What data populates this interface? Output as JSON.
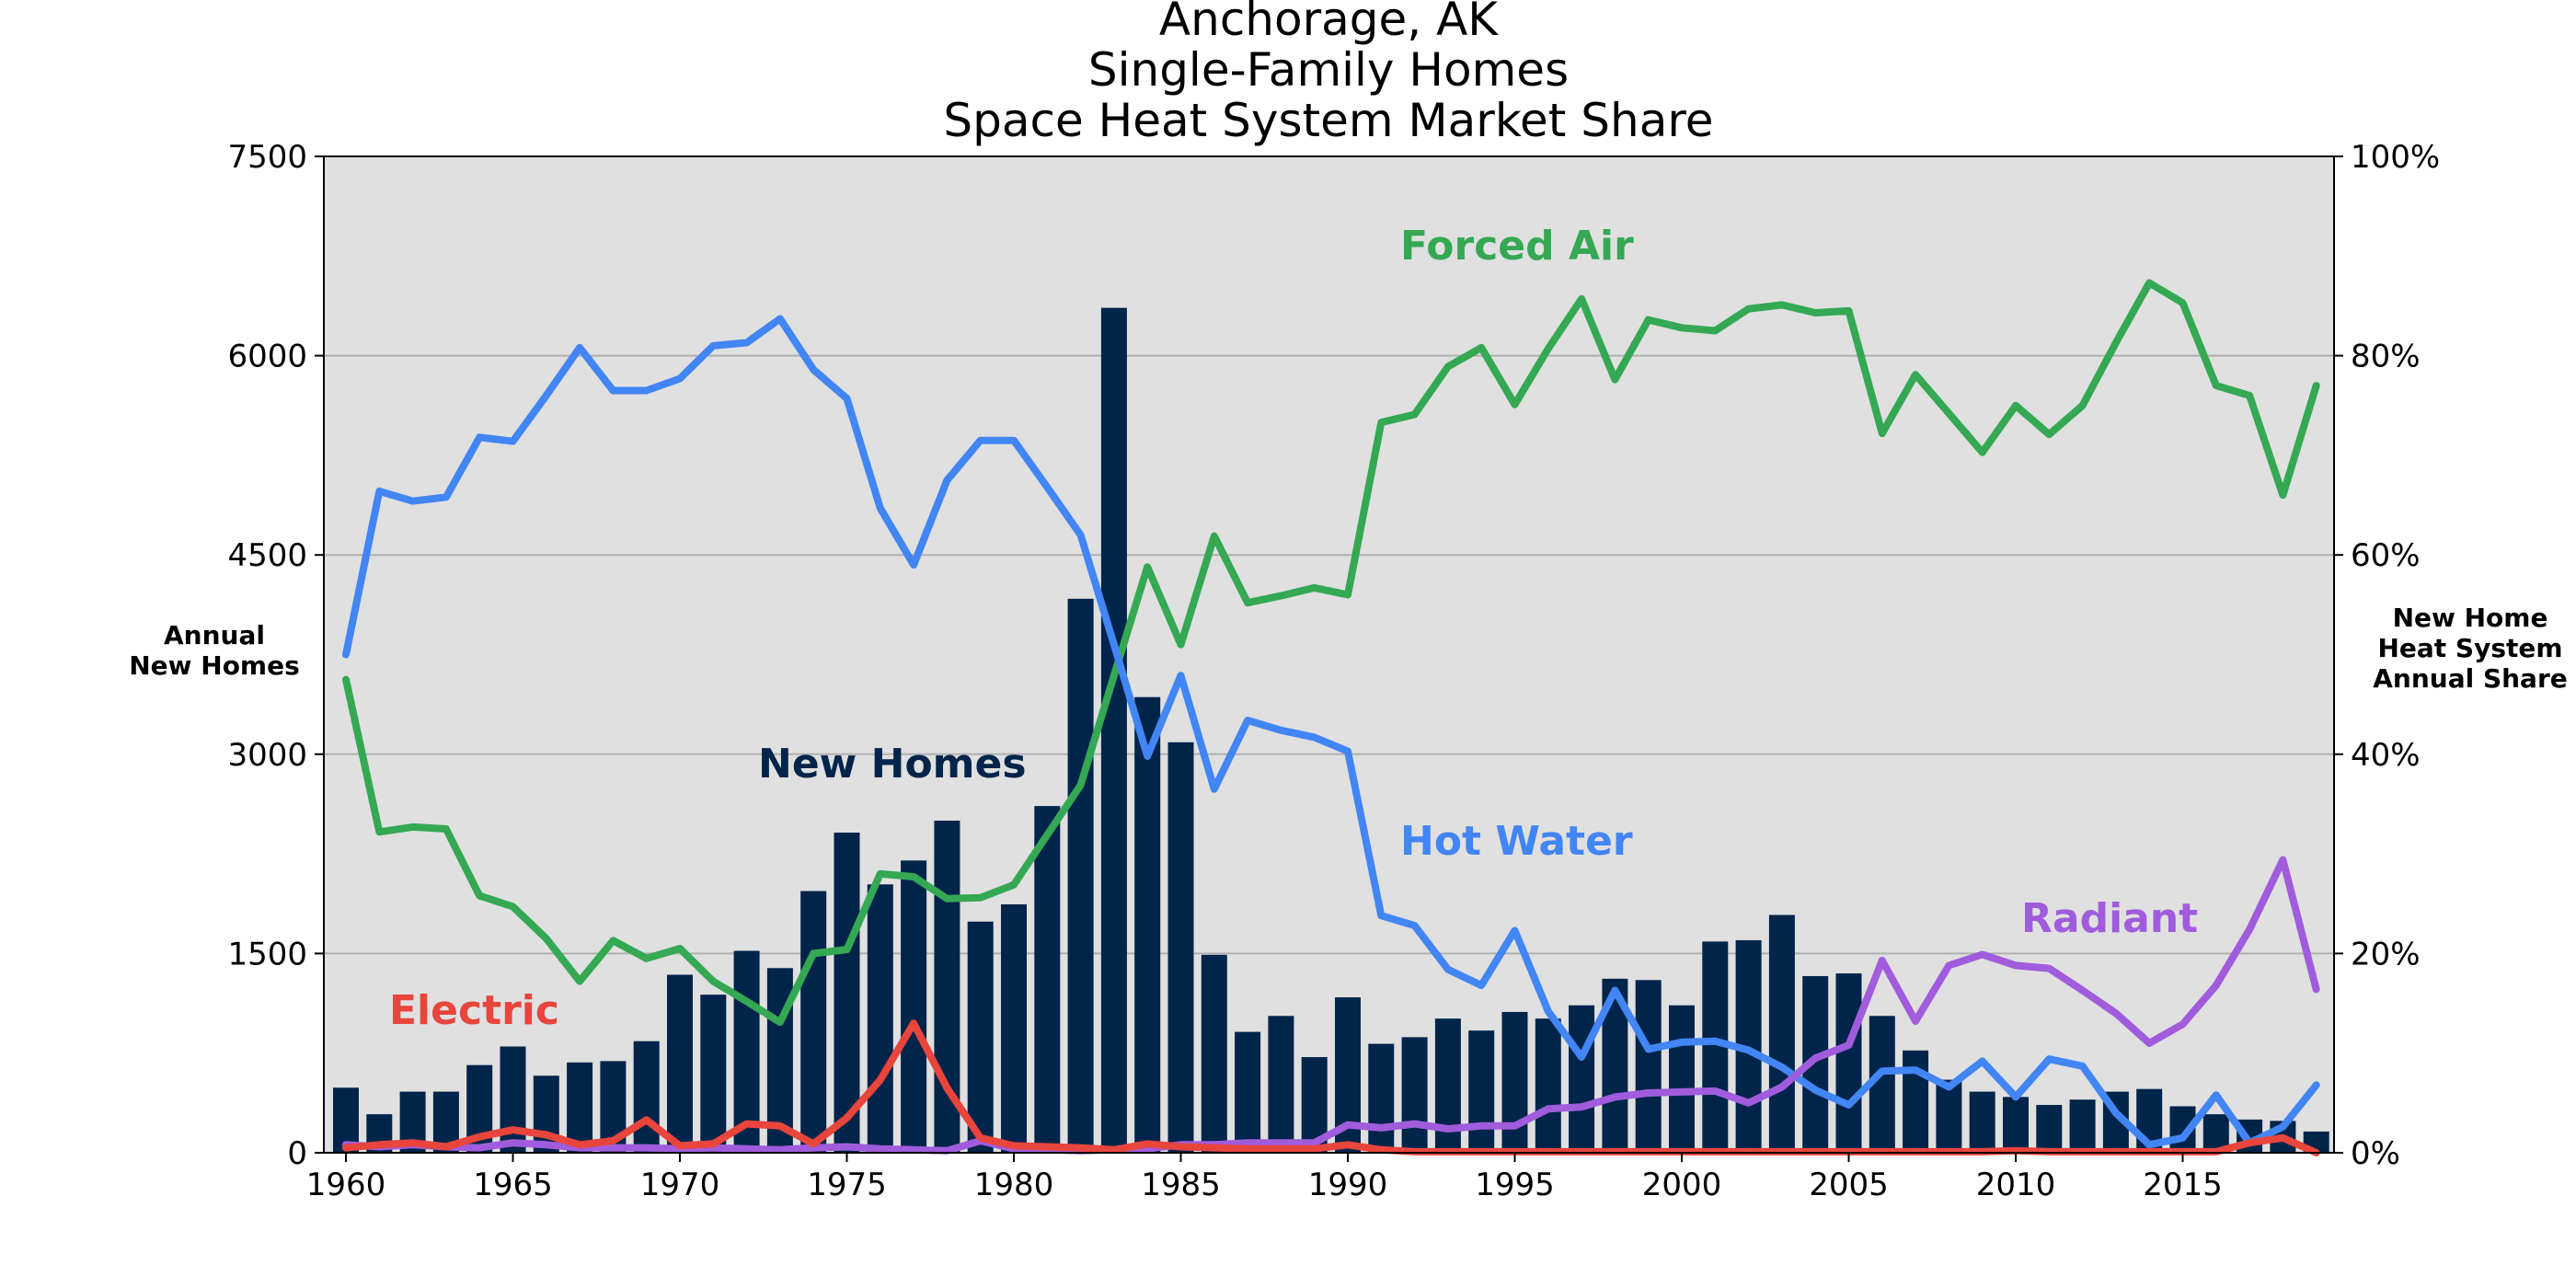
{
  "chart_data": {
    "type": "bar",
    "title_lines": [
      "Anchorage, AK",
      "Single-Family Homes",
      "Space Heat System Market Share"
    ],
    "y_left_label_lines": [
      "Annual",
      "New Homes"
    ],
    "y_right_label_lines": [
      "New Home",
      "Heat System",
      "Annual Share"
    ],
    "y_left_ticks": [
      "0",
      "1500",
      "3000",
      "4500",
      "6000",
      "7500"
    ],
    "y_right_ticks": [
      "0%",
      "20%",
      "40%",
      "60%",
      "80%",
      "100%"
    ],
    "x_ticks": [
      "1960",
      "1965",
      "1970",
      "1975",
      "1980",
      "1985",
      "1990",
      "1995",
      "2000",
      "2005",
      "2010",
      "2015"
    ],
    "y_left_lim": [
      0,
      7500
    ],
    "y_right_lim": [
      0,
      100
    ],
    "grid": "horizontal",
    "background": "#e0e0e0",
    "years": [
      1960,
      1961,
      1962,
      1963,
      1964,
      1965,
      1966,
      1967,
      1968,
      1969,
      1970,
      1971,
      1972,
      1973,
      1974,
      1975,
      1976,
      1977,
      1978,
      1979,
      1980,
      1981,
      1982,
      1983,
      1984,
      1985,
      1986,
      1987,
      1988,
      1989,
      1990,
      1991,
      1992,
      1993,
      1994,
      1995,
      1996,
      1997,
      1998,
      1999,
      2000,
      2001,
      2002,
      2003,
      2004,
      2005,
      2006,
      2007,
      2008,
      2009,
      2010,
      2011,
      2012,
      2013,
      2014,
      2015,
      2016,
      2017,
      2018,
      2019
    ],
    "bars": {
      "name": "New Homes",
      "color": "#00244a",
      "values": [
        490,
        290,
        460,
        460,
        660,
        800,
        580,
        680,
        690,
        840,
        1340,
        1190,
        1520,
        1390,
        1970,
        2410,
        2020,
        2200,
        2500,
        1740,
        1870,
        2610,
        4170,
        6360,
        3430,
        3090,
        1490,
        910,
        1030,
        720,
        1170,
        820,
        870,
        1010,
        920,
        1060,
        1010,
        1110,
        1310,
        1300,
        1110,
        1590,
        1600,
        1790,
        1330,
        1350,
        1030,
        770,
        550,
        460,
        420,
        360,
        400,
        460,
        480,
        350,
        290,
        250,
        240,
        160
      ]
    },
    "series": [
      {
        "name": "Forced Air",
        "color": "#34a853",
        "values": [
          47.5,
          32.2,
          32.7,
          32.5,
          25.8,
          24.7,
          21.5,
          17.2,
          21.3,
          19.5,
          20.5,
          17.2,
          15.2,
          13.1,
          20.0,
          20.4,
          28.0,
          27.7,
          25.5,
          25.6,
          26.9,
          31.9,
          36.9,
          47.9,
          58.8,
          51.0,
          61.9,
          55.2,
          55.9,
          56.7,
          56.0,
          73.3,
          74.1,
          78.9,
          80.8,
          75.1,
          80.7,
          85.7,
          77.6,
          83.6,
          82.8,
          82.5,
          84.7,
          85.1,
          84.3,
          84.5,
          72.2,
          78.1,
          74.2,
          70.3,
          75.0,
          72.1,
          75.0,
          81.3,
          87.3,
          85.3,
          77.0,
          76.0,
          66.0,
          77.0
        ]
      },
      {
        "name": "Hot Water",
        "color": "#4285f4",
        "values": [
          50.0,
          66.4,
          65.4,
          65.8,
          71.8,
          71.4,
          76.0,
          80.8,
          76.5,
          76.5,
          77.7,
          81.0,
          81.3,
          83.7,
          78.6,
          75.7,
          64.7,
          59.0,
          67.5,
          71.5,
          71.5,
          66.8,
          62.0,
          51.0,
          39.8,
          47.9,
          36.5,
          43.4,
          42.4,
          41.7,
          40.3,
          23.8,
          22.8,
          18.4,
          16.8,
          22.3,
          14.2,
          9.6,
          16.3,
          10.4,
          11.1,
          11.2,
          10.3,
          8.6,
          6.3,
          4.8,
          8.2,
          8.3,
          6.6,
          9.2,
          5.6,
          9.4,
          8.7,
          4.0,
          0.8,
          1.5,
          5.8,
          1.0,
          2.6,
          6.8
        ]
      },
      {
        "name": "Radiant",
        "color": "#a05cdc",
        "values": [
          0.8,
          0.6,
          0.8,
          0.6,
          0.5,
          1.0,
          0.8,
          0.5,
          0.5,
          0.5,
          0.4,
          0.5,
          0.4,
          0.3,
          0.5,
          0.6,
          0.4,
          0.3,
          0.2,
          1.2,
          0.4,
          0.3,
          0.2,
          0.3,
          0.4,
          0.8,
          0.8,
          1.0,
          1.0,
          1.0,
          2.8,
          2.5,
          2.9,
          2.4,
          2.7,
          2.7,
          4.4,
          4.6,
          5.6,
          6.0,
          6.1,
          6.2,
          5.0,
          6.6,
          9.5,
          10.8,
          19.3,
          13.2,
          18.8,
          19.9,
          18.8,
          18.5,
          16.3,
          14.0,
          11.0,
          12.9,
          16.8,
          22.4,
          29.4,
          16.4
        ]
      },
      {
        "name": "Electric",
        "color": "#e8453c",
        "values": [
          0.5,
          0.8,
          1.0,
          0.6,
          1.6,
          2.3,
          1.8,
          0.8,
          1.2,
          3.3,
          0.7,
          0.9,
          2.9,
          2.7,
          0.9,
          3.5,
          7.3,
          13.0,
          6.5,
          1.5,
          0.7,
          0.6,
          0.5,
          0.3,
          0.9,
          0.6,
          0.5,
          0.4,
          0.4,
          0.4,
          0.8,
          0.3,
          0.1,
          0.1,
          0.1,
          0.1,
          0.1,
          0.1,
          0.1,
          0.1,
          0.1,
          0.1,
          0.1,
          0.1,
          0.1,
          0.1,
          0.1,
          0.1,
          0.1,
          0.1,
          0.2,
          0.1,
          0.1,
          0.1,
          0.1,
          0.1,
          0.1,
          1.0,
          1.5,
          0.0
        ]
      }
    ],
    "annotations": [
      {
        "text": "Forced Air",
        "color": "#34a853"
      },
      {
        "text": "Hot Water",
        "color": "#4285f4"
      },
      {
        "text": "Radiant",
        "color": "#a05cdc"
      },
      {
        "text": "Electric",
        "color": "#e8453c"
      },
      {
        "text": "New Homes",
        "color": "#00244a"
      }
    ]
  }
}
